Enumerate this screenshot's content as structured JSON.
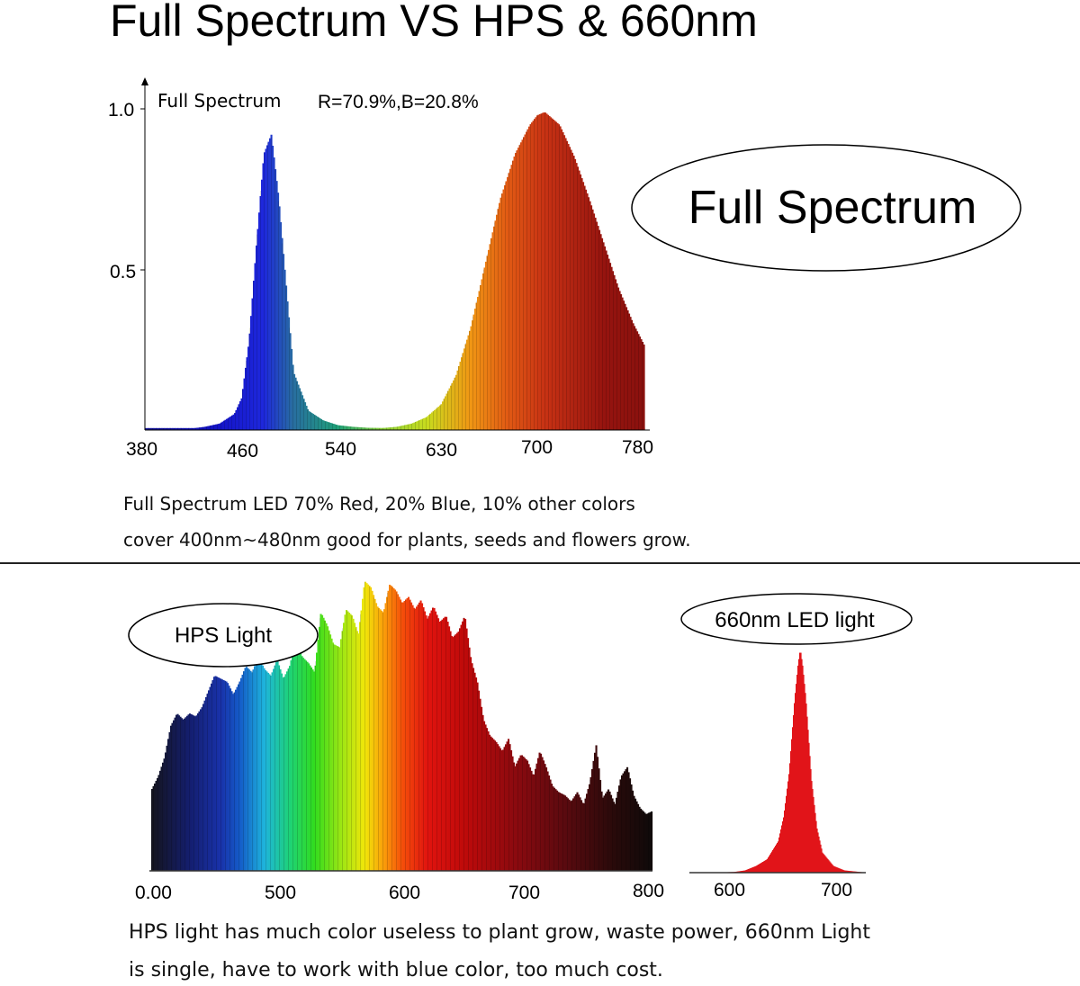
{
  "title": "Full Spectrum VS HPS & 660nm",
  "captions": {
    "full_spectrum_line1": "Full Spectrum LED 70% Red, 20% Blue, 10% other colors",
    "full_spectrum_line2": "cover 400nm~480nm good for plants, seeds and flowers grow.",
    "hps_line1": "HPS light has much color useless to plant grow, waste power, 660nm Light",
    "hps_line2": "is single, have to work with blue color, too much cost."
  },
  "chart_data": [
    {
      "type": "area",
      "title": "Full Spectrum",
      "subtitle": "R=70.9%,B=20.8%",
      "badge": "Full Spectrum",
      "x_tick_labels": [
        "380",
        "460",
        "540",
        "630",
        "700",
        "780"
      ],
      "y_tick_labels": [
        "1.0",
        "0.5"
      ],
      "xlim": [
        380,
        780
      ],
      "ylim": [
        0,
        1.0
      ],
      "series": [
        {
          "x": [
            380,
            400,
            410,
            420,
            430,
            440,
            445,
            450,
            455,
            460,
            465,
            470,
            480,
            490,
            500,
            510,
            520,
            530,
            540
          ],
          "y": [
            0.0,
            0.0,
            0.004,
            0.01,
            0.02,
            0.05,
            0.1,
            0.28,
            0.58,
            0.86,
            0.92,
            0.72,
            0.18,
            0.06,
            0.03,
            0.015,
            0.01,
            0.007,
            0.006
          ]
        },
        {
          "x": [
            540,
            550,
            560,
            570,
            580,
            590,
            600,
            610,
            620,
            630,
            640,
            645,
            650,
            660,
            670,
            680,
            690,
            700,
            710,
            720,
            730,
            740,
            750,
            760,
            770,
            780
          ],
          "y": [
            0.006,
            0.01,
            0.02,
            0.04,
            0.08,
            0.17,
            0.32,
            0.52,
            0.72,
            0.86,
            0.95,
            0.98,
            0.99,
            0.95,
            0.85,
            0.72,
            0.58,
            0.44,
            0.33,
            0.24,
            0.17,
            0.12,
            0.08,
            0.06,
            0.04,
            0.03
          ]
        }
      ]
    },
    {
      "type": "area",
      "badge": "HPS Light",
      "x_tick_labels": [
        "0.00",
        "500",
        "600",
        "700",
        "800"
      ],
      "xlim": [
        400,
        800
      ],
      "ylim": [
        0,
        1.0
      ],
      "x": [
        400,
        405,
        410,
        415,
        420,
        425,
        430,
        435,
        440,
        445,
        450,
        455,
        460,
        465,
        470,
        475,
        480,
        485,
        490,
        495,
        500,
        505,
        510,
        515,
        520,
        525,
        530,
        535,
        540,
        545,
        550,
        555,
        560,
        565,
        570,
        575,
        580,
        585,
        590,
        595,
        600,
        605,
        610,
        615,
        620,
        625,
        630,
        635,
        640,
        645,
        650,
        655,
        660,
        665,
        670,
        675,
        680,
        685,
        690,
        695,
        700,
        705,
        710,
        715,
        720,
        725,
        730,
        735,
        740,
        745,
        750,
        755,
        760,
        765,
        770,
        775,
        780,
        785,
        790,
        795,
        800
      ],
      "values": [
        0.26,
        0.3,
        0.36,
        0.46,
        0.5,
        0.48,
        0.5,
        0.49,
        0.52,
        0.57,
        0.62,
        0.61,
        0.6,
        0.56,
        0.6,
        0.65,
        0.63,
        0.68,
        0.64,
        0.62,
        0.67,
        0.61,
        0.65,
        0.73,
        0.68,
        0.66,
        0.63,
        0.82,
        0.78,
        0.72,
        0.71,
        0.83,
        0.81,
        0.75,
        0.92,
        0.9,
        0.84,
        0.82,
        0.91,
        0.89,
        0.85,
        0.87,
        0.83,
        0.86,
        0.8,
        0.84,
        0.79,
        0.81,
        0.74,
        0.76,
        0.81,
        0.67,
        0.6,
        0.48,
        0.43,
        0.41,
        0.38,
        0.42,
        0.33,
        0.37,
        0.35,
        0.3,
        0.38,
        0.33,
        0.27,
        0.25,
        0.24,
        0.22,
        0.25,
        0.21,
        0.28,
        0.4,
        0.23,
        0.26,
        0.21,
        0.3,
        0.33,
        0.24,
        0.2,
        0.18,
        0.19
      ]
    },
    {
      "type": "area",
      "badge": "660nm LED light",
      "x_tick_labels": [
        "600",
        "700"
      ],
      "xlim": [
        560,
        720
      ],
      "ylim": [
        0,
        1.0
      ],
      "x": [
        560,
        580,
        600,
        610,
        620,
        630,
        640,
        645,
        650,
        655,
        658,
        660,
        662,
        665,
        670,
        675,
        680,
        690,
        700,
        720
      ],
      "values": [
        0,
        0,
        0.003,
        0.01,
        0.03,
        0.06,
        0.14,
        0.25,
        0.45,
        0.78,
        0.93,
        1.0,
        0.93,
        0.78,
        0.42,
        0.2,
        0.09,
        0.03,
        0.01,
        0
      ]
    }
  ]
}
